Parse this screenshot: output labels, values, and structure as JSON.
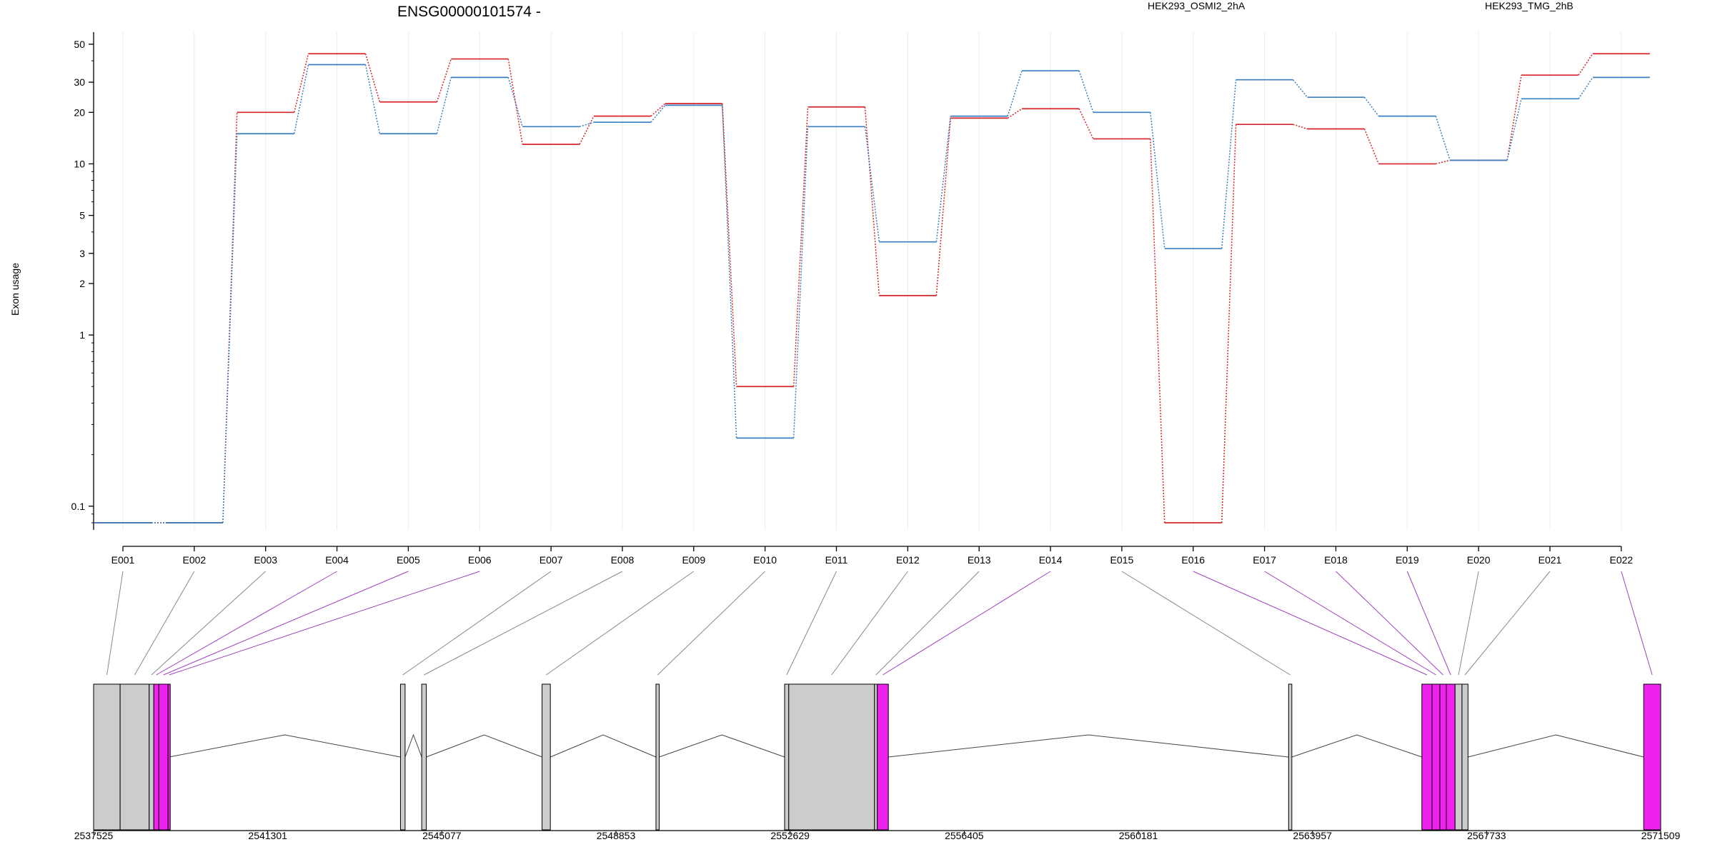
{
  "chart_data": {
    "type": "line",
    "title": "ENSG00000101574 -",
    "ylabel": "Exon usage",
    "xlabel": "",
    "y_scale": "log",
    "ylim": [
      0.08,
      55
    ],
    "y_ticks": [
      0.1,
      1,
      2,
      3,
      5,
      10,
      20,
      30,
      50
    ],
    "y_tick_labels": [
      "0.1",
      "1",
      "2",
      "3",
      "5",
      "10",
      "20",
      "30",
      "50"
    ],
    "grid": "vertical",
    "legend_placement": "top",
    "categories": [
      "E001",
      "E002",
      "E003",
      "E004",
      "E005",
      "E006",
      "E007",
      "E008",
      "E009",
      "E010",
      "E011",
      "E012",
      "E013",
      "E014",
      "E015",
      "E016",
      "E017",
      "E018",
      "E019",
      "E020",
      "E021",
      "E022"
    ],
    "series": [
      {
        "name": "HEK293_OSMI2_2hA",
        "color": "#d6242a",
        "values": [
          0.08,
          0.08,
          20,
          44,
          23,
          41,
          13,
          19,
          22.5,
          0.5,
          21.5,
          1.7,
          18.5,
          21,
          14,
          0.08,
          17,
          16,
          10,
          10.5,
          33,
          44
        ]
      },
      {
        "name": "HEK293_TMG_2hB",
        "color": "#3a7fbf",
        "values": [
          0.08,
          0.08,
          15,
          38,
          15,
          32,
          16.5,
          17.5,
          22,
          0.25,
          16.5,
          3.5,
          19,
          35,
          20,
          3.2,
          31,
          24.5,
          19,
          10.5,
          24,
          32
        ]
      }
    ],
    "gene_model": {
      "coordinate_ticks": [
        2537525,
        2541301,
        2545077,
        2548853,
        2552629,
        2556405,
        2560181,
        2563957,
        2567733,
        2571509
      ],
      "coordinate_tick_labels": [
        "2537525",
        "2541301",
        "2545077",
        "2548853",
        "2552629",
        "2556405",
        "2560181",
        "2563957",
        "2567733",
        "2571509"
      ],
      "highlight_color": "#ee22ee",
      "base_color": "#cccccc",
      "exons": [
        {
          "id": "E001",
          "start": 2537525,
          "end": 2538100,
          "highlight": false
        },
        {
          "id": "E002",
          "start": 2538100,
          "end": 2538730,
          "highlight": false
        },
        {
          "id": "E003",
          "start": 2538730,
          "end": 2538830,
          "highlight": false
        },
        {
          "id": "E004",
          "start": 2538830,
          "end": 2538940,
          "highlight": true
        },
        {
          "id": "E005",
          "start": 2538940,
          "end": 2539140,
          "highlight": true
        },
        {
          "id": "E006",
          "start": 2539140,
          "end": 2539160,
          "highlight": true
        },
        {
          "id": "E007",
          "start": 2544180,
          "end": 2544280,
          "highlight": false
        },
        {
          "id": "E008",
          "start": 2544640,
          "end": 2544740,
          "highlight": false
        },
        {
          "id": "E009",
          "start": 2547250,
          "end": 2547430,
          "highlight": false
        },
        {
          "id": "E010",
          "start": 2549720,
          "end": 2549790,
          "highlight": false
        },
        {
          "id": "E011",
          "start": 2552510,
          "end": 2552600,
          "highlight": false
        },
        {
          "id": "E012",
          "start": 2552600,
          "end": 2554460,
          "highlight": false
        },
        {
          "id": "E013",
          "start": 2554460,
          "end": 2554520,
          "highlight": false
        },
        {
          "id": "E014",
          "start": 2554520,
          "end": 2554760,
          "highlight": true
        },
        {
          "id": "E015",
          "start": 2563440,
          "end": 2563510,
          "highlight": false
        },
        {
          "id": "E016",
          "start": 2566330,
          "end": 2566550,
          "highlight": true
        },
        {
          "id": "E017",
          "start": 2566550,
          "end": 2566720,
          "highlight": true
        },
        {
          "id": "E018",
          "start": 2566720,
          "end": 2566860,
          "highlight": true
        },
        {
          "id": "E019",
          "start": 2566860,
          "end": 2567050,
          "highlight": true
        },
        {
          "id": "E020",
          "start": 2567050,
          "end": 2567200,
          "highlight": false
        },
        {
          "id": "E021",
          "start": 2567200,
          "end": 2567330,
          "highlight": false
        },
        {
          "id": "E022",
          "start": 2571140,
          "end": 2571509,
          "highlight": true
        }
      ]
    }
  }
}
